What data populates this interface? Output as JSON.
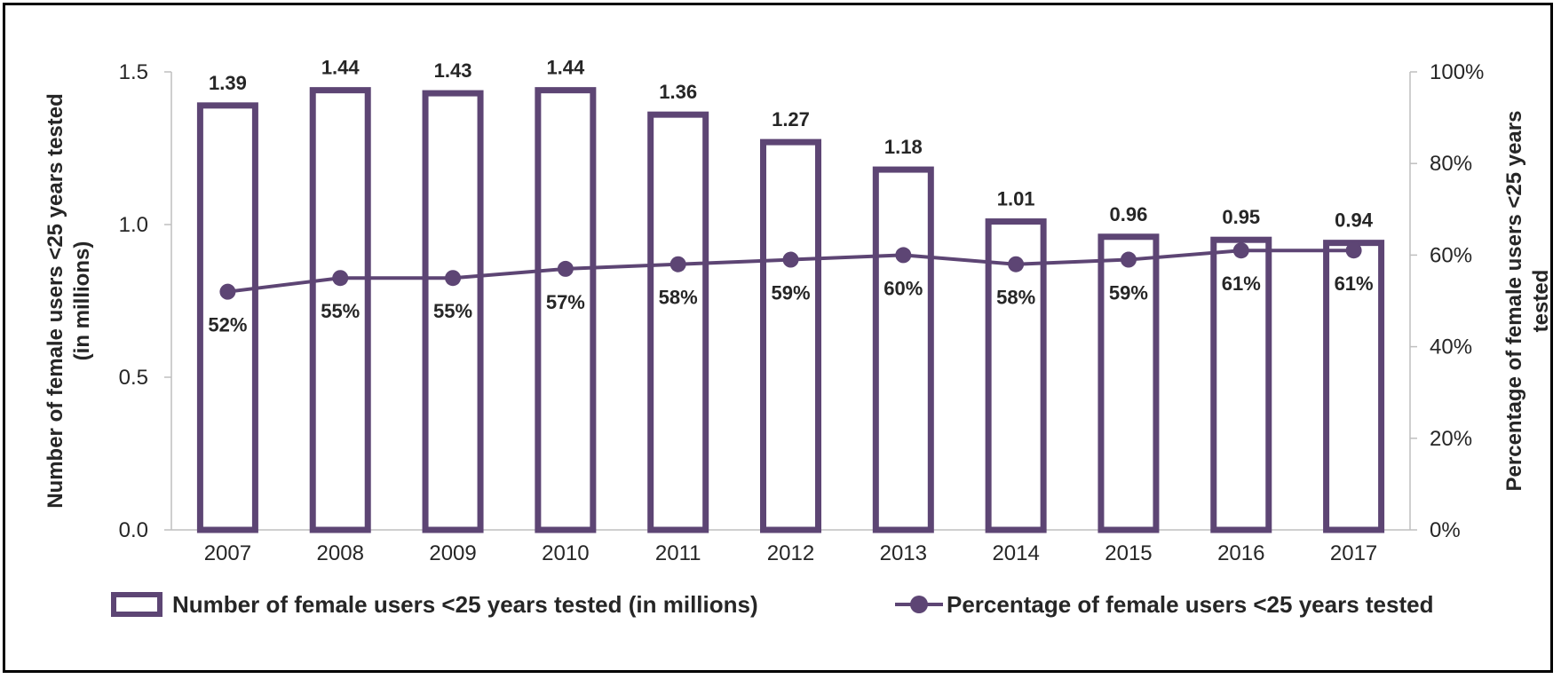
{
  "chart_data": {
    "type": "bar",
    "categories": [
      "2007",
      "2008",
      "2009",
      "2010",
      "2011",
      "2012",
      "2013",
      "2014",
      "2015",
      "2016",
      "2017"
    ],
    "series": [
      {
        "name": "Number of female users <25 years tested (in millions)",
        "type": "bar",
        "axis": "left",
        "values": [
          1.39,
          1.44,
          1.43,
          1.44,
          1.36,
          1.27,
          1.18,
          1.01,
          0.96,
          0.95,
          0.94
        ],
        "labels": [
          "1.39",
          "1.44",
          "1.43",
          "1.44",
          "1.36",
          "1.27",
          "1.18",
          "1.01",
          "0.96",
          "0.95",
          "0.94"
        ]
      },
      {
        "name": "Percentage of female users <25 years tested",
        "type": "line",
        "axis": "right",
        "values": [
          52,
          55,
          55,
          57,
          58,
          59,
          60,
          58,
          59,
          61,
          61
        ],
        "labels": [
          "52%",
          "55%",
          "55%",
          "57%",
          "58%",
          "59%",
          "60%",
          "58%",
          "59%",
          "61%",
          "61%"
        ]
      }
    ],
    "y_left": {
      "label_lines": [
        "Number of female users <25 years tested",
        "(in millions)"
      ],
      "ylim": [
        0,
        1.5
      ],
      "ticks": [
        "0.0",
        "0.5",
        "1.0",
        "1.5"
      ],
      "tick_values": [
        0,
        0.5,
        1.0,
        1.5
      ]
    },
    "y_right": {
      "label_lines": [
        "Percentage of female users <25 years",
        "tested"
      ],
      "ylim": [
        0,
        100
      ],
      "ticks": [
        "0%",
        "20%",
        "40%",
        "60%",
        "80%",
        "100%"
      ],
      "tick_values": [
        0,
        20,
        40,
        60,
        80,
        100
      ]
    },
    "grid": false,
    "legend_position": "bottom",
    "colors": {
      "primary": "#5d4574",
      "text": "#262626",
      "axis": "#bfbfbf"
    }
  }
}
